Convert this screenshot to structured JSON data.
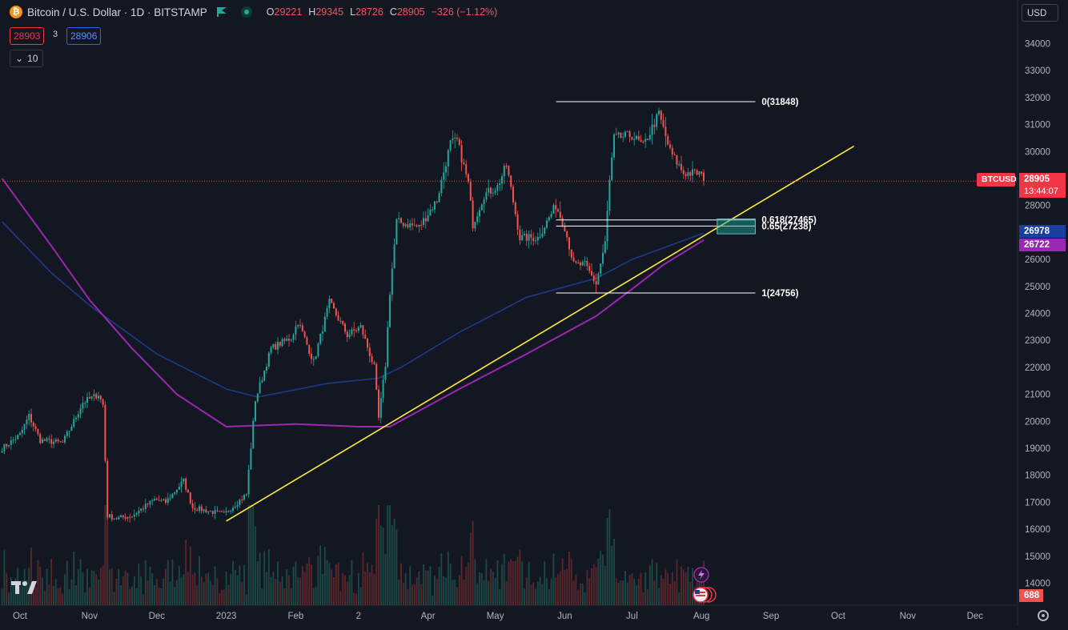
{
  "header": {
    "title": "Bitcoin / U.S. Dollar · 1D · BITSTAMP",
    "ohlc": [
      {
        "k": "O",
        "v": "29221"
      },
      {
        "k": "H",
        "v": "29345"
      },
      {
        "k": "L",
        "v": "28726"
      },
      {
        "k": "C",
        "v": "28905"
      }
    ],
    "change": "−326 (−1.12%)",
    "bid": "28903",
    "spread": "3",
    "ask": "28906",
    "indicator_count": "10",
    "currency": "USD"
  },
  "axis_tags": {
    "symbol": "BTCUSD",
    "last_price": "28905",
    "countdown": "13:44:07",
    "ma_blue": "26978",
    "ma_purple": "26722",
    "volume": "688"
  },
  "colors": {
    "background": "#131722",
    "up": "#26a69a",
    "down": "#ef5350",
    "ma_blue": "#1e3a8a",
    "ma_purple": "#9c27b0",
    "trendline": "#ffeb3b",
    "fib_lines": "#ffffff",
    "fib_zone": "#26a69a"
  },
  "icons": [
    "bitcoin-logo-icon",
    "flag-icon",
    "live-status-icon",
    "chevron-down-icon",
    "tradingview-logo-icon",
    "lightning-icon",
    "us-flag-icon",
    "settings-icon"
  ],
  "chart_data": {
    "type": "candlestick",
    "title": "Bitcoin / U.S. Dollar · 1D · BITSTAMP",
    "xlabel": "",
    "ylabel": "",
    "ylim": [
      13500,
      34600
    ],
    "y_ticks": [
      14000,
      15000,
      16000,
      17000,
      18000,
      19000,
      20000,
      21000,
      22000,
      23000,
      24000,
      25000,
      26000,
      27000,
      28000,
      29000,
      30000,
      31000,
      32000,
      33000,
      34000
    ],
    "x_ticks": [
      {
        "label": "Oct",
        "date": "2022-10-01"
      },
      {
        "label": "Nov",
        "date": "2022-11-01"
      },
      {
        "label": "Dec",
        "date": "2022-12-01"
      },
      {
        "label": "2023",
        "date": "2023-01-01"
      },
      {
        "label": "Feb",
        "date": "2023-02-01"
      },
      {
        "label": "2",
        "date": "2023-03-01"
      },
      {
        "label": "Apr",
        "date": "2023-04-01"
      },
      {
        "label": "May",
        "date": "2023-05-01"
      },
      {
        "label": "Jun",
        "date": "2023-06-01"
      },
      {
        "label": "Jul",
        "date": "2023-07-01"
      },
      {
        "label": "Aug",
        "date": "2023-08-01"
      },
      {
        "label": "Sep",
        "date": "2023-09-01"
      },
      {
        "label": "Oct",
        "date": "2023-10-01"
      },
      {
        "label": "Nov",
        "date": "2023-11-01"
      },
      {
        "label": "Dec",
        "date": "2023-12-01"
      }
    ],
    "price_path": [
      [
        "2022-09-23",
        19000
      ],
      [
        "2022-10-01",
        19500
      ],
      [
        "2022-10-05",
        20200
      ],
      [
        "2022-10-10",
        19300
      ],
      [
        "2022-10-20",
        19200
      ],
      [
        "2022-10-25",
        20000
      ],
      [
        "2022-10-29",
        20700
      ],
      [
        "2022-11-05",
        21000
      ],
      [
        "2022-11-07",
        20600
      ],
      [
        "2022-11-09",
        16500
      ],
      [
        "2022-11-13",
        16400
      ],
      [
        "2022-11-20",
        16500
      ],
      [
        "2022-11-30",
        17100
      ],
      [
        "2022-12-05",
        17000
      ],
      [
        "2022-12-13",
        17800
      ],
      [
        "2022-12-17",
        16800
      ],
      [
        "2022-12-31",
        16550
      ],
      [
        "2023-01-10",
        17300
      ],
      [
        "2023-01-14",
        20800
      ],
      [
        "2023-01-21",
        22700
      ],
      [
        "2023-01-30",
        23100
      ],
      [
        "2023-02-02",
        23700
      ],
      [
        "2023-02-09",
        22200
      ],
      [
        "2023-02-16",
        24400
      ],
      [
        "2023-02-24",
        23200
      ],
      [
        "2023-03-02",
        23500
      ],
      [
        "2023-03-08",
        22000
      ],
      [
        "2023-03-10",
        20100
      ],
      [
        "2023-03-13",
        22100
      ],
      [
        "2023-03-15",
        24800
      ],
      [
        "2023-03-18",
        27400
      ],
      [
        "2023-03-28",
        27200
      ],
      [
        "2023-04-05",
        28200
      ],
      [
        "2023-04-11",
        30300
      ],
      [
        "2023-04-14",
        30400
      ],
      [
        "2023-04-19",
        28800
      ],
      [
        "2023-04-21",
        27300
      ],
      [
        "2023-04-26",
        28400
      ],
      [
        "2023-05-02",
        28700
      ],
      [
        "2023-05-06",
        29500
      ],
      [
        "2023-05-12",
        26800
      ],
      [
        "2023-05-20",
        26800
      ],
      [
        "2023-05-28",
        28000
      ],
      [
        "2023-06-01",
        27200
      ],
      [
        "2023-06-05",
        25800
      ],
      [
        "2023-06-10",
        25800
      ],
      [
        "2023-06-15",
        25100
      ],
      [
        "2023-06-19",
        26600
      ],
      [
        "2023-06-21",
        28900
      ],
      [
        "2023-06-23",
        30500
      ],
      [
        "2023-07-01",
        30600
      ],
      [
        "2023-07-06",
        30200
      ],
      [
        "2023-07-13",
        31400
      ],
      [
        "2023-07-18",
        30000
      ],
      [
        "2023-07-24",
        29200
      ],
      [
        "2023-07-31",
        29200
      ],
      [
        "2023-08-02",
        28905
      ]
    ],
    "ohlc_last": {
      "open": 29221,
      "high": 29345,
      "low": 28726,
      "close": 28905,
      "change": -326,
      "change_pct": -1.12
    },
    "series": [
      {
        "color": "#1e3a8a",
        "points": [
          [
            "2022-09-23",
            27400
          ],
          [
            "2022-10-15",
            25500
          ],
          [
            "2022-11-01",
            24300
          ],
          [
            "2022-12-01",
            22500
          ],
          [
            "2023-01-01",
            21200
          ],
          [
            "2023-01-15",
            20900
          ],
          [
            "2023-02-15",
            21400
          ],
          [
            "2023-03-10",
            21600
          ],
          [
            "2023-03-20",
            22000
          ],
          [
            "2023-04-15",
            23300
          ],
          [
            "2023-05-15",
            24600
          ],
          [
            "2023-06-15",
            25300
          ],
          [
            "2023-07-01",
            26000
          ],
          [
            "2023-08-02",
            26978
          ]
        ]
      },
      {
        "color": "#9c27b0",
        "points": [
          [
            "2022-09-23",
            29000
          ],
          [
            "2022-10-15",
            26500
          ],
          [
            "2022-11-01",
            24500
          ],
          [
            "2022-11-20",
            22700
          ],
          [
            "2022-12-10",
            21000
          ],
          [
            "2023-01-01",
            19800
          ],
          [
            "2023-02-01",
            19900
          ],
          [
            "2023-03-01",
            19800
          ],
          [
            "2023-03-15",
            19800
          ],
          [
            "2023-04-15",
            21200
          ],
          [
            "2023-05-15",
            22500
          ],
          [
            "2023-06-15",
            23900
          ],
          [
            "2023-07-01",
            24900
          ],
          [
            "2023-07-15",
            25800
          ],
          [
            "2023-08-02",
            26722
          ]
        ]
      }
    ],
    "trendline": {
      "start": [
        "2023-01-01",
        16300
      ],
      "end": [
        "2023-10-08",
        30200
      ]
    },
    "fibonacci": {
      "from": "2023-06-15",
      "to": "2023-07-31",
      "levels": [
        {
          "label": "0(31848)",
          "value": 31848
        },
        {
          "label": "0.618(27465)",
          "value": 27465
        },
        {
          "label": "0.65(27238)",
          "value": 27238
        },
        {
          "label": "1(24756)",
          "value": 24756
        }
      ],
      "zone": {
        "from": "2023-08-08",
        "to": "2023-08-25",
        "low": 26950,
        "high": 27500
      }
    },
    "last_price_line": 28905,
    "volume_max": 3200
  }
}
